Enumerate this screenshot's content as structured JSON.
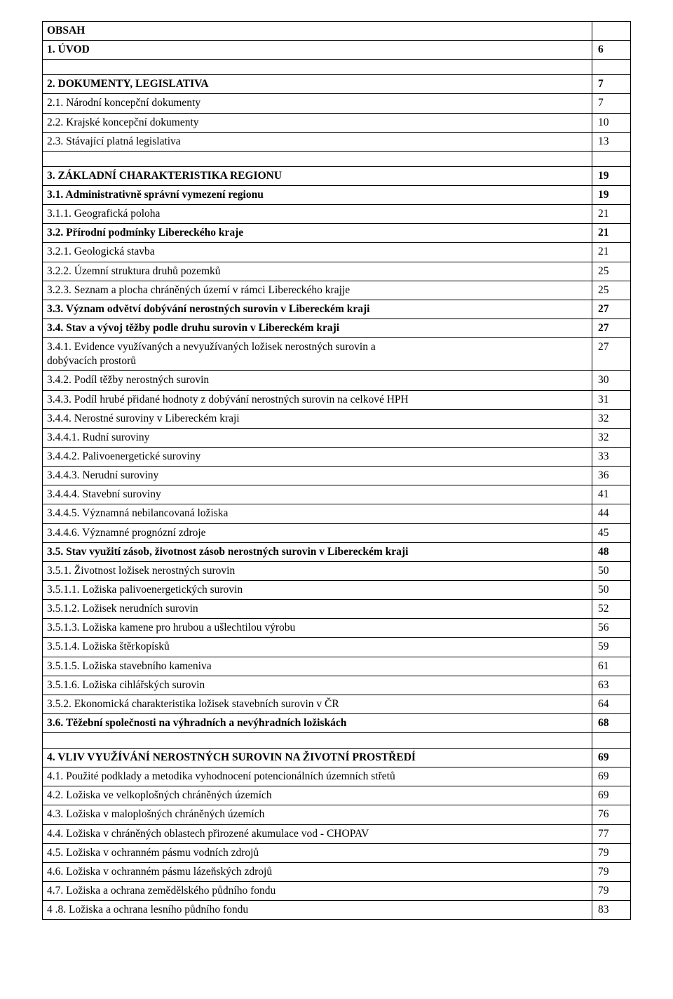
{
  "header": {
    "obsah": "OBSAH",
    "uvod": "1. ÚVOD",
    "uvod_page": "6"
  },
  "s2": {
    "title": "2. DOKUMENTY, LEGISLATIVA",
    "title_page": "7",
    "r1": "2.1. Národní koncepční  dokumenty",
    "r1_page": "7",
    "r2": "2.2. Krajské koncepční dokumenty",
    "r2_page": "10",
    "r3": "2.3. Stávající platná legislativa",
    "r3_page": "13"
  },
  "s3": {
    "title": "3. ZÁKLADNÍ CHARAKTERISTIKA REGIONU",
    "title_page": "19",
    "r1": "3.1. Administrativně správní vymezení regionu",
    "r1_page": "19",
    "r11": "3.1.1. Geografická poloha",
    "r11_page": "21",
    "r2": "3.2. Přírodní podmínky Libereckého kraje",
    "r2_page": "21",
    "r21": "3.2.1. Geologická stavba",
    "r21_page": "21",
    "r22": "3.2.2. Územní struktura druhů pozemků",
    "r22_page": "25",
    "r23": "3.2.3. Seznam a plocha chráněných území v rámci Libereckého krajje",
    "r23_page": "25",
    "r33": "3.3. Význam odvětví dobývání nerostných surovin v Libereckém kraji",
    "r33_page": "27",
    "r34": "3.4. Stav a vývoj těžby podle druhu surovin v Libereckém kraji",
    "r34_page": "27",
    "r341a": "3.4.1. Evidence využívaných a nevyužívaných  ložisek nerostných surovin a",
    "r341b": "dobývacích prostorů",
    "r341_page": "27",
    "r342": "3.4.2. Podíl těžby nerostných surovin",
    "r342_page": "30",
    "r343": "3.4.3. Podíl hrubé přidané hodnoty z dobývání nerostných surovin na celkové HPH",
    "r343_page": "31",
    "r344": "3.4.4. Nerostné suroviny v Libereckém kraji",
    "r344_page": "32",
    "r3441": "3.4.4.1. Rudní suroviny",
    "r3441_page": "32",
    "r3442": "3.4.4.2. Palivoenergetické suroviny",
    "r3442_page": "33",
    "r3443": "3.4.4.3. Nerudní suroviny",
    "r3443_page": "36",
    "r3444": "3.4.4.4. Stavební suroviny",
    "r3444_page": "41",
    "r3445": "3.4.4.5. Významná nebilancovaná ložiska",
    "r3445_page": "44",
    "r3446": "3.4.4.6. Významné prognózní zdroje",
    "r3446_page": "45",
    "r35": "3.5. Stav využití zásob, životnost zásob nerostných surovin v Libereckém kraji",
    "r35_page": "48",
    "r351": "3.5.1. Životnost ložisek nerostných surovin",
    "r351_page": "50",
    "r3511": "3.5.1.1. Ložiska palivoenergetických  surovin",
    "r3511_page": "50",
    "r3512": "3.5.1.2. Ložisek nerudních  surovin",
    "r3512_page": "52",
    "r3513": "3.5.1.3. Ložiska kamene pro hrubou a ušlechtilou výrobu",
    "r3513_page": "56",
    "r3514": "3.5.1.4. Ložiska štěrkopísků",
    "r3514_page": "59",
    "r3515": "3.5.1.5. Ložiska stavebního kameniva",
    "r3515_page": "61",
    "r3516": "3.5.1.6. Ložiska cihlářských surovin",
    "r3516_page": "63",
    "r352": "3.5.2. Ekonomická charakteristika ložisek stavebních surovin v ČR",
    "r352_page": "64",
    "r36": "3.6. Těžební společnosti na výhradních a nevýhradních ložiskách",
    "r36_page": "68"
  },
  "s4": {
    "title": "4. VLIV VYUŽÍVÁNÍ NEROSTNÝCH SUROVIN NA ŽIVOTNÍ PROSTŘEDÍ",
    "title_page": "69",
    "r1": "4.1. Použité podklady a metodika vyhodnocení potencionálních územních střetů",
    "r1_page": "69",
    "r2": "4.2. Ložiska ve velkoplošných chráněných územích",
    "r2_page": "69",
    "r3": "4.3. Ložiska v maloplošných chráněných územích",
    "r3_page": "76",
    "r4": "4.4. Ložiska v chráněných oblastech přirozené akumulace vod - CHOPAV",
    "r4_page": "77",
    "r5": "4.5. Ložiska v ochranném pásmu vodních zdrojů",
    "r5_page": "79",
    "r6": "4.6. Ložiska v ochranném pásmu lázeňských zdrojů",
    "r6_page": "79",
    "r7": "4.7. Ložiska a ochrana zemědělského půdního fondu",
    "r7_page": "79",
    "r8": "4 .8. Ložiska a ochrana lesního půdního fondu",
    "r8_page": "83"
  }
}
